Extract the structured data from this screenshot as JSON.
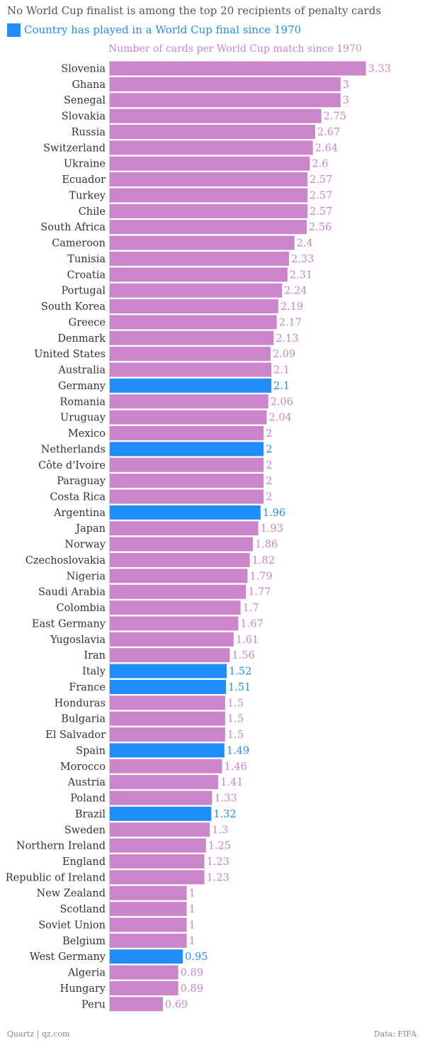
{
  "chart_data": {
    "type": "bar",
    "orientation": "horizontal",
    "title": "No World Cup finalist is among the top 20 recipients of penalty cards",
    "legend": [
      {
        "label": "Country has played in a World Cup final since 1970",
        "color": "#1f8efa"
      }
    ],
    "xlabel": "Number of cards per World Cup match since 1970",
    "xlim": [
      0,
      3.33
    ],
    "colors": {
      "default": "#cc84ca",
      "finalist": "#1f8efa"
    },
    "categories": [
      "Slovenia",
      "Ghana",
      "Senegal",
      "Slovakia",
      "Russia",
      "Switzerland",
      "Ukraine",
      "Ecuador",
      "Turkey",
      "Chile",
      "South Africa",
      "Cameroon",
      "Tunisia",
      "Croatia",
      "Portugal",
      "South Korea",
      "Greece",
      "Denmark",
      "United States",
      "Australia",
      "Germany",
      "Romania",
      "Uruguay",
      "Mexico",
      "Netherlands",
      "Côte d'Ivoire",
      "Paraguay",
      "Costa Rica",
      "Argentina",
      "Japan",
      "Norway",
      "Czechoslovakia",
      "Nigeria",
      "Saudi Arabia",
      "Colombia",
      "East Germany",
      "Yugoslavia",
      "Iran",
      "Italy",
      "France",
      "Honduras",
      "Bulgaria",
      "El Salvador",
      "Spain",
      "Morocco",
      "Austria",
      "Poland",
      "Brazil",
      "Sweden",
      "Northern Ireland",
      "England",
      "Republic of Ireland",
      "New Zealand",
      "Scotland",
      "Soviet Union",
      "Belgium",
      "West Germany",
      "Algeria",
      "Hungary",
      "Peru"
    ],
    "values": [
      3.33,
      3,
      3,
      2.75,
      2.67,
      2.64,
      2.6,
      2.57,
      2.57,
      2.57,
      2.56,
      2.4,
      2.33,
      2.31,
      2.24,
      2.19,
      2.17,
      2.13,
      2.09,
      2.1,
      2.1,
      2.06,
      2.04,
      2,
      2,
      2,
      2,
      2,
      1.96,
      1.93,
      1.86,
      1.82,
      1.79,
      1.77,
      1.7,
      1.67,
      1.61,
      1.56,
      1.52,
      1.51,
      1.5,
      1.5,
      1.5,
      1.49,
      1.46,
      1.41,
      1.33,
      1.32,
      1.3,
      1.25,
      1.23,
      1.23,
      1,
      1,
      1,
      1,
      0.95,
      0.89,
      0.89,
      0.69
    ],
    "labels": [
      "3.33",
      "3",
      "3",
      "2.75",
      "2.67",
      "2.64",
      "2.6",
      "2.57",
      "2.57",
      "2.57",
      "2.56",
      "2.4",
      "2.33",
      "2.31",
      "2.24",
      "2.19",
      "2.17",
      "2.13",
      "2.09",
      "2.1",
      "2.1",
      "2.06",
      "2.04",
      "2",
      "2",
      "2",
      "2",
      "2",
      "1.96",
      "1.93",
      "1.86",
      "1.82",
      "1.79",
      "1.77",
      "1.7",
      "1.67",
      "1.61",
      "1.56",
      "1.52",
      "1.51",
      "1.5",
      "1.5",
      "1.5",
      "1.49",
      "1.46",
      "1.41",
      "1.33",
      "1.32",
      "1.3",
      "1.25",
      "1.23",
      "1.23",
      "1",
      "1",
      "1",
      "1",
      "0.95",
      "0.89",
      "0.89",
      "0.69"
    ],
    "finalists": [
      "Germany",
      "Netherlands",
      "Argentina",
      "Italy",
      "France",
      "Spain",
      "Brazil",
      "West Germany"
    ]
  },
  "footer": {
    "source_left": "Quartz | qz.com",
    "source_right": "Data: FIFA"
  }
}
